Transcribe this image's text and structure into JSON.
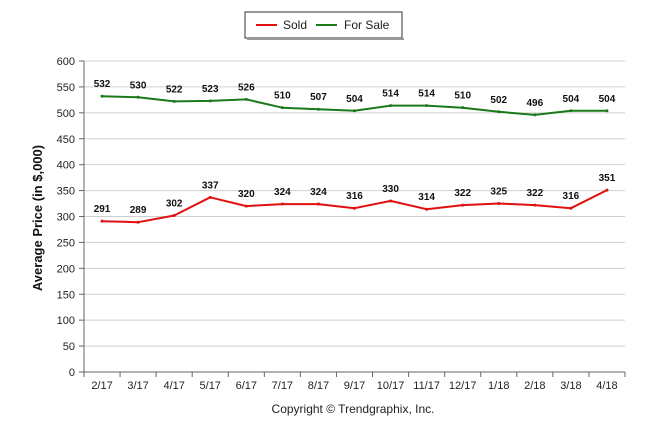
{
  "chart_data": {
    "type": "line",
    "categories": [
      "2/17",
      "3/17",
      "4/17",
      "5/17",
      "6/17",
      "7/17",
      "8/17",
      "9/17",
      "10/17",
      "11/17",
      "12/17",
      "1/18",
      "2/18",
      "3/18",
      "4/18"
    ],
    "series": [
      {
        "name": "Sold",
        "color": "#e01010",
        "values": [
          291,
          289,
          302,
          337,
          320,
          324,
          324,
          316,
          330,
          314,
          322,
          325,
          322,
          316,
          351
        ]
      },
      {
        "name": "For Sale",
        "color": "#1a7a1a",
        "values": [
          532,
          530,
          522,
          523,
          526,
          510,
          507,
          504,
          514,
          514,
          510,
          502,
          496,
          504,
          504
        ]
      }
    ],
    "ylabel": "Average Price (in $,000)",
    "xlabel": "",
    "ylim": [
      0,
      600
    ],
    "yticks": [
      0,
      50,
      100,
      150,
      200,
      250,
      300,
      350,
      400,
      450,
      500,
      550,
      600
    ],
    "grid": true,
    "legend_position": "top-center",
    "footer": "Copyright © Trendgraphix, Inc."
  }
}
